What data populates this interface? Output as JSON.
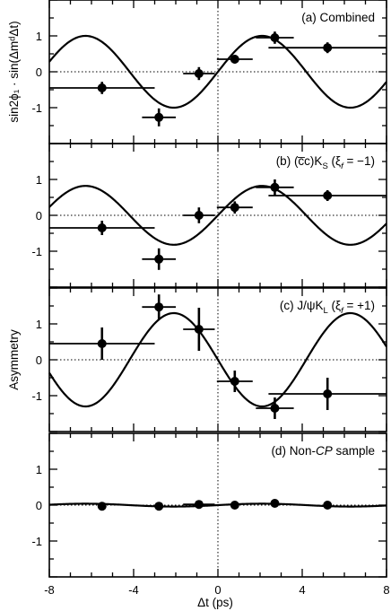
{
  "chart_data": [
    {
      "type": "scatter",
      "panel_label": "(a) Combined",
      "ylabel": "sin2ϕ₁ · sin(ΔmᵈΔt)",
      "xlim": [
        -8,
        8
      ],
      "ylim": [
        -2,
        2
      ],
      "curve": {
        "amplitude": 1.0,
        "sign": 1
      },
      "points": [
        {
          "x": -5.5,
          "y": -0.45,
          "xerr": 2.5,
          "yerr": 0.17
        },
        {
          "x": -2.8,
          "y": -1.27,
          "xerr": 0.8,
          "yerr": 0.25
        },
        {
          "x": -0.9,
          "y": -0.05,
          "xerr": 0.75,
          "yerr": 0.18
        },
        {
          "x": 0.8,
          "y": 0.35,
          "xerr": 0.85,
          "yerr": 0.12
        },
        {
          "x": 2.7,
          "y": 0.95,
          "xerr": 0.9,
          "yerr": 0.17
        },
        {
          "x": 5.2,
          "y": 0.67,
          "xerr": 2.8,
          "yerr": 0.15
        }
      ]
    },
    {
      "type": "scatter",
      "panel_label": "(b) (c̅c)K",
      "panel_label_sub": "S",
      "panel_label_xi": " (ξ",
      "panel_label_xi_sub": "f",
      "panel_label_tail": " = −1)",
      "xlim": [
        -8,
        8
      ],
      "ylim": [
        -2,
        2
      ],
      "curve": {
        "amplitude": 0.82,
        "sign": 1
      },
      "points": [
        {
          "x": -5.5,
          "y": -0.35,
          "xerr": 2.5,
          "yerr": 0.2
        },
        {
          "x": -2.8,
          "y": -1.22,
          "xerr": 0.8,
          "yerr": 0.3
        },
        {
          "x": -0.9,
          "y": 0.0,
          "xerr": 0.75,
          "yerr": 0.22
        },
        {
          "x": 0.8,
          "y": 0.22,
          "xerr": 0.85,
          "yerr": 0.17
        },
        {
          "x": 2.7,
          "y": 0.78,
          "xerr": 0.9,
          "yerr": 0.22
        },
        {
          "x": 5.2,
          "y": 0.55,
          "xerr": 2.8,
          "yerr": 0.15
        }
      ]
    },
    {
      "type": "scatter",
      "panel_label": "(c) J/ψK",
      "panel_label_sub": "L",
      "panel_label_xi": " (ξ",
      "panel_label_xi_sub": "f",
      "panel_label_tail": " = +1)",
      "ylabel": "Asymmetry",
      "xlim": [
        -8,
        8
      ],
      "ylim": [
        -2,
        2
      ],
      "curve": {
        "amplitude": 1.3,
        "sign": -1
      },
      "points": [
        {
          "x": -5.5,
          "y": 0.45,
          "xerr": 2.5,
          "yerr": 0.45
        },
        {
          "x": -2.8,
          "y": 1.47,
          "xerr": 0.8,
          "yerr": 0.35
        },
        {
          "x": -0.9,
          "y": 0.85,
          "xerr": 0.75,
          "yerr": 0.6
        },
        {
          "x": 0.8,
          "y": -0.6,
          "xerr": 0.85,
          "yerr": 0.3
        },
        {
          "x": 2.7,
          "y": -1.35,
          "xerr": 0.9,
          "yerr": 0.3
        },
        {
          "x": 5.2,
          "y": -0.95,
          "xerr": 2.8,
          "yerr": 0.45
        }
      ]
    },
    {
      "type": "scatter",
      "panel_label": "(d) Non-",
      "panel_label_italic": "CP",
      "panel_label_tail": " sample",
      "xlim": [
        -8,
        8
      ],
      "ylim": [
        -2,
        2
      ],
      "curve": {
        "amplitude": 0.04,
        "sign": 1
      },
      "points": [
        {
          "x": -5.5,
          "y": -0.03,
          "xerr": 0.0,
          "yerr": 0.02
        },
        {
          "x": -2.8,
          "y": -0.03,
          "xerr": 0.0,
          "yerr": 0.02
        },
        {
          "x": -0.9,
          "y": 0.02,
          "xerr": 0.75,
          "yerr": 0.02
        },
        {
          "x": 0.8,
          "y": 0.0,
          "xerr": 0.0,
          "yerr": 0.02
        },
        {
          "x": 2.7,
          "y": 0.05,
          "xerr": 0.0,
          "yerr": 0.02
        },
        {
          "x": 5.2,
          "y": 0.0,
          "xerr": 0.0,
          "yerr": 0.02
        }
      ]
    }
  ],
  "xlabel": "Δt (ps)",
  "x_ticks": [
    "-8",
    "-4",
    "0",
    "4",
    "8"
  ],
  "y_ticks": [
    "1",
    "0",
    "-1"
  ],
  "dm": 0.75
}
